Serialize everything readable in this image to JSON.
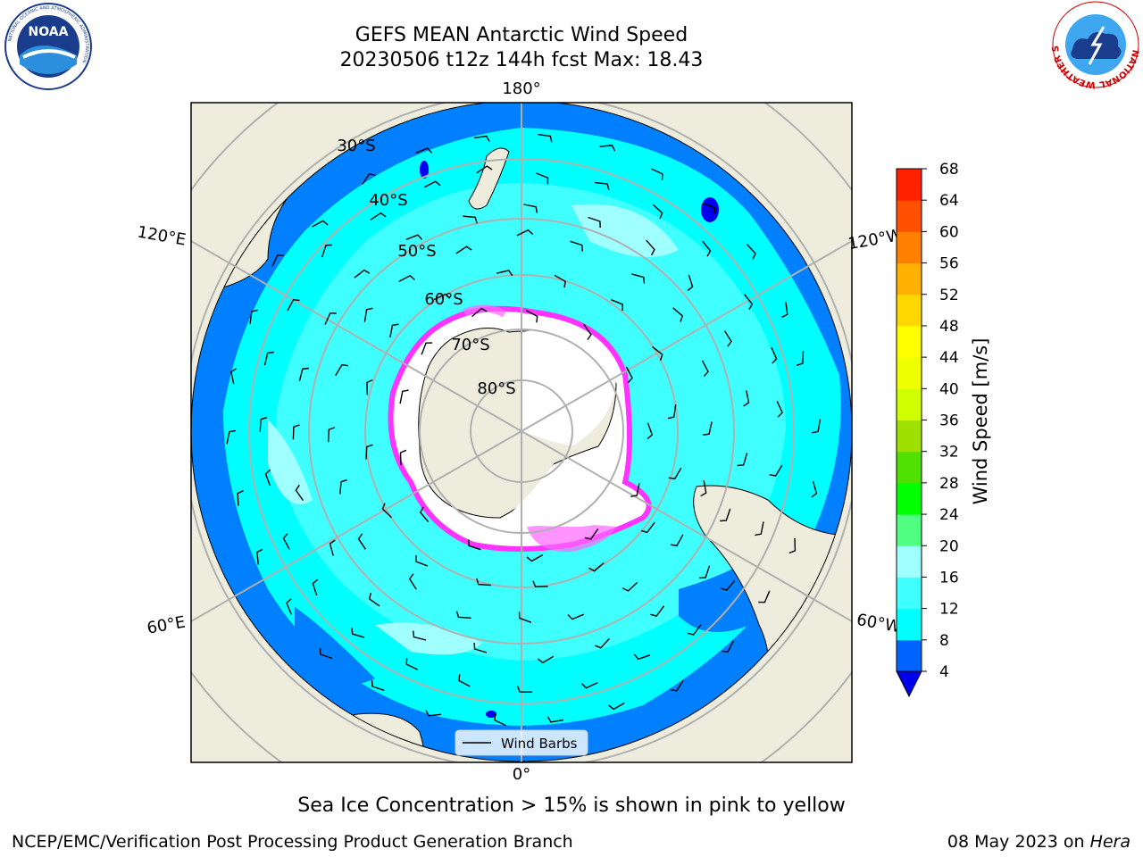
{
  "header": {
    "title_line1": "GEFS MEAN Antarctic Wind Speed",
    "title_line2": "20230506 t12z 144h fcst   Max: 18.43"
  },
  "logos": {
    "noaa_text": "NOAA",
    "noaa_ring_text": "NATIONAL OCEANIC AND ATMOSPHERIC ADMINISTRATION",
    "noaa_ring_bottom": "U.S. DEPARTMENT OF COMMERCE",
    "nws_ring_text": "NATIONAL WEATHER SERVICE"
  },
  "map": {
    "longitude_labels": [
      "180°",
      "0°",
      "120°E",
      "60°E",
      "120°W",
      "60°W"
    ],
    "latitude_labels": [
      "30°S",
      "40°S",
      "50°S",
      "60°S",
      "70°S",
      "80°S"
    ],
    "legend_label": "Wind Barbs",
    "colors": {
      "ocean_low": "#0080ff",
      "ocean_mid": "#00ffff",
      "ocean_high": "#40ffff",
      "land": "#eeecdc",
      "ice_edge": "#ff33ff",
      "grid": "#b0b0b0"
    }
  },
  "colorbar": {
    "label": "Wind Speed [m/s]",
    "ticks": [
      "4",
      "8",
      "12",
      "16",
      "20",
      "24",
      "28",
      "32",
      "36",
      "40",
      "44",
      "48",
      "52",
      "56",
      "60",
      "64",
      "68"
    ],
    "colors": [
      "#0064ff",
      "#00ffff",
      "#40ffff",
      "#a0ffff",
      "#50ff80",
      "#00ff00",
      "#50e000",
      "#a0e000",
      "#d0ff00",
      "#f0ff00",
      "#ffff00",
      "#ffd700",
      "#ffb000",
      "#ff8000",
      "#ff5000",
      "#ff2000",
      "#ff0000"
    ]
  },
  "caption": "Sea Ice Concentration > 15% is shown in pink to yellow",
  "footer": {
    "left": "NCEP/EMC/Verification Post Processing Product Generation Branch",
    "right_date": "08 May 2023 on ",
    "right_host": "Hera"
  }
}
